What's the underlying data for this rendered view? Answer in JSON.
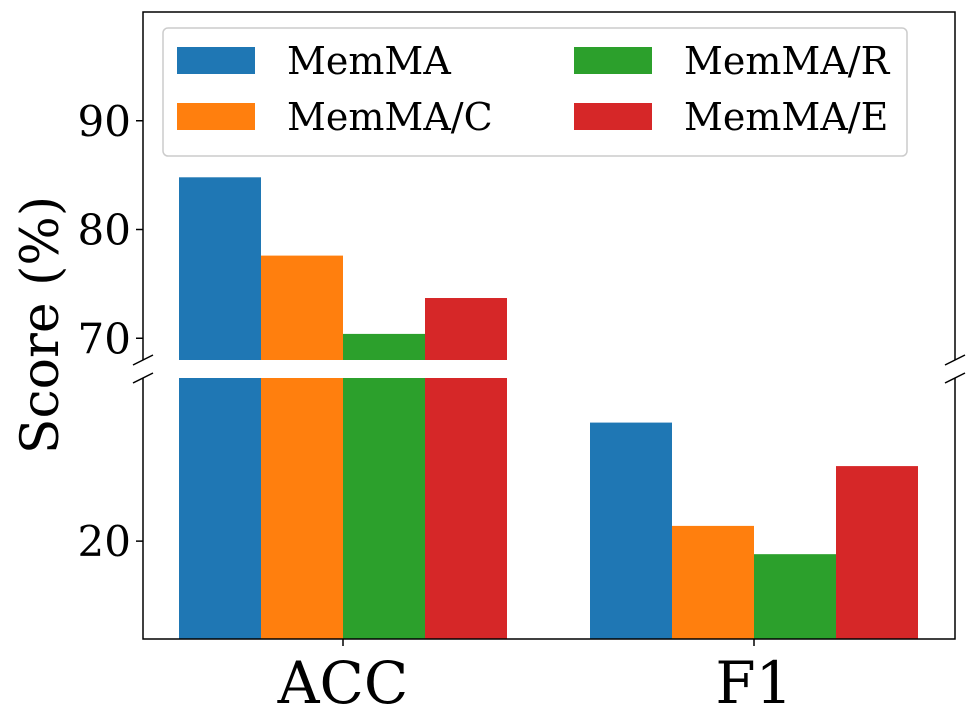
{
  "chart_data": {
    "type": "bar",
    "broken_axis": true,
    "ylabel": "Score (%)",
    "xlabel": "",
    "categories": [
      "ACC",
      "F1"
    ],
    "series": [
      {
        "name": "MemMA",
        "color": "#1f77b4",
        "values": [
          84.8,
          30.9
        ]
      },
      {
        "name": "MemMA/C",
        "color": "#ff7f0e",
        "values": [
          77.6,
          21.4
        ]
      },
      {
        "name": "MemMA/R",
        "color": "#2ca02c",
        "values": [
          70.4,
          18.8
        ]
      },
      {
        "name": "MemMA/E",
        "color": "#d62728",
        "values": [
          73.7,
          26.9
        ]
      }
    ],
    "upper_panel": {
      "ylim": [
        68,
        100
      ],
      "ticks": [
        "70",
        "80",
        "90"
      ]
    },
    "lower_panel": {
      "ylim": [
        11,
        35
      ],
      "ticks": [
        "20"
      ]
    },
    "legend": {
      "placement": "top",
      "columns": 2
    },
    "grid": false
  }
}
